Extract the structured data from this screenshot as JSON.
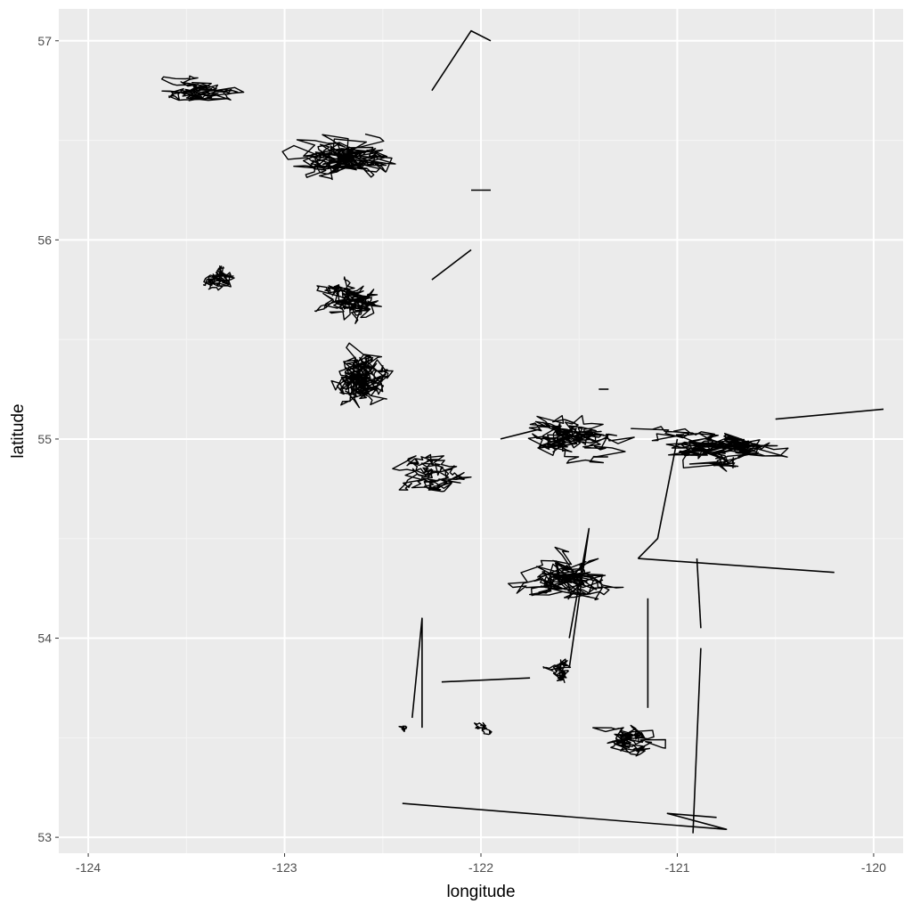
{
  "colors": {
    "panel_background": "#ebebeb",
    "major_grid": "#ffffff",
    "minor_grid": "#f5f5f5",
    "path": "#000000",
    "tick_text": "#4d4d4d",
    "axis_text": "#000000"
  },
  "chart_data": {
    "type": "line",
    "title": "",
    "xlabel": "longitude",
    "ylabel": "latitude",
    "xlim": [
      -124.15,
      -119.85
    ],
    "ylim": [
      52.92,
      57.16
    ],
    "x_ticks": [
      -124,
      -123,
      -122,
      -121,
      -120
    ],
    "x_tick_labels": [
      "-124",
      "-123",
      "-122",
      "-121",
      "-120"
    ],
    "y_ticks": [
      53,
      54,
      55,
      56,
      57
    ],
    "y_tick_labels": [
      "53",
      "54",
      "55",
      "56",
      "57"
    ],
    "grid": true,
    "legend": "none",
    "series": [
      {
        "clusters": [
          {
            "center": [
              -123.45,
              56.75
            ],
            "spread": [
              0.3,
              0.07
            ],
            "n": 150
          },
          {
            "center": [
              -122.7,
              56.4
            ],
            "spread": [
              0.4,
              0.18
            ],
            "n": 260
          },
          {
            "center": [
              -123.35,
              55.8
            ],
            "spread": [
              0.15,
              0.1
            ],
            "n": 120
          },
          {
            "center": [
              -122.65,
              55.7
            ],
            "spread": [
              0.25,
              0.15
            ],
            "n": 200
          },
          {
            "center": [
              -122.6,
              55.3
            ],
            "spread": [
              0.25,
              0.2
            ],
            "n": 320
          },
          {
            "center": [
              -122.25,
              54.85
            ],
            "spread": [
              0.25,
              0.12
            ],
            "n": 160
          },
          {
            "center": [
              -121.55,
              55.0
            ],
            "spread": [
              0.35,
              0.15
            ],
            "n": 240
          },
          {
            "center": [
              -120.75,
              54.95
            ],
            "spread": [
              0.5,
              0.15
            ],
            "n": 240
          },
          {
            "center": [
              -121.55,
              54.3
            ],
            "spread": [
              0.4,
              0.2
            ],
            "n": 200
          },
          {
            "center": [
              -121.6,
              53.85
            ],
            "spread": [
              0.12,
              0.12
            ],
            "n": 80
          },
          {
            "center": [
              -121.25,
              53.5
            ],
            "spread": [
              0.25,
              0.12
            ],
            "n": 130
          },
          {
            "center": [
              -122.0,
              53.55
            ],
            "spread": [
              0.08,
              0.05
            ],
            "n": 40
          },
          {
            "center": [
              -122.4,
              53.55
            ],
            "spread": [
              0.05,
              0.04
            ],
            "n": 25
          }
        ],
        "segments": [
          [
            [
              -122.25,
              56.75
            ],
            [
              -122.05,
              57.05
            ],
            [
              -121.95,
              57.0
            ]
          ],
          [
            [
              -122.05,
              56.25
            ],
            [
              -121.95,
              56.25
            ]
          ],
          [
            [
              -122.25,
              55.8
            ],
            [
              -122.05,
              55.95
            ]
          ],
          [
            [
              -120.2,
              54.33
            ],
            [
              -121.2,
              54.4
            ]
          ],
          [
            [
              -122.4,
              53.17
            ],
            [
              -120.75,
              53.04
            ],
            [
              -121.05,
              53.12
            ],
            [
              -120.8,
              53.1
            ]
          ],
          [
            [
              -122.3,
              53.55
            ],
            [
              -122.3,
              54.1
            ],
            [
              -122.35,
              53.6
            ]
          ],
          [
            [
              -121.75,
              53.8
            ],
            [
              -122.2,
              53.78
            ]
          ],
          [
            [
              -120.92,
              53.02
            ],
            [
              -120.88,
              53.95
            ]
          ],
          [
            [
              -121.15,
              53.65
            ],
            [
              -121.15,
              54.2
            ]
          ],
          [
            [
              -120.88,
              54.05
            ],
            [
              -120.9,
              54.4
            ]
          ],
          [
            [
              -121.7,
              55.05
            ],
            [
              -121.9,
              55.0
            ]
          ],
          [
            [
              -121.0,
              55.0
            ],
            [
              -121.1,
              54.5
            ],
            [
              -121.2,
              54.4
            ]
          ],
          [
            [
              -119.95,
              55.15
            ],
            [
              -120.5,
              55.1
            ]
          ],
          [
            [
              -121.4,
              55.25
            ],
            [
              -121.35,
              55.25
            ]
          ],
          [
            [
              -121.55,
              53.85
            ],
            [
              -121.45,
              54.55
            ],
            [
              -121.55,
              54.0
            ]
          ]
        ]
      }
    ]
  }
}
